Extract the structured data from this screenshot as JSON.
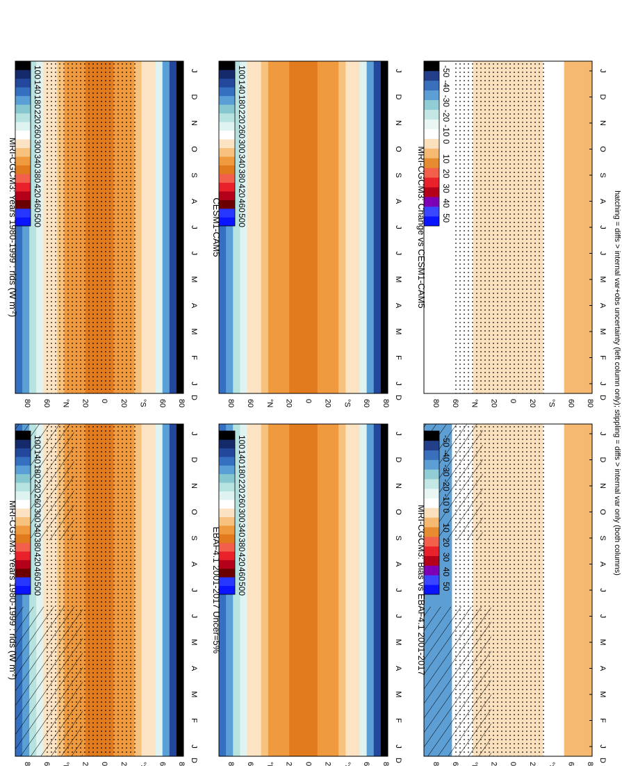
{
  "footer": "hatching = diffs > internal var+obs uncertainty (left column only); stippling = diffs > internal var only (both columns)",
  "chart_data": [
    {
      "type": "heatmap",
      "panel": "top-left",
      "title": "MRI-CGCM3: Years 1980-1999 : rlds (W m",
      "title_units_sup": "-2",
      "x_ticks": [
        "J",
        "F",
        "M",
        "A",
        "M",
        "J",
        "J",
        "A",
        "S",
        "O",
        "N",
        "D",
        "J"
      ],
      "y_ticks": [
        "80",
        "60",
        "°N",
        "20",
        "0",
        "20",
        "°S",
        "60",
        "80"
      ],
      "y_end_label": "D",
      "colorbar_labels": [
        "500",
        "460",
        "420",
        "380",
        "340",
        "300",
        "260",
        "220",
        "180",
        "140",
        "100"
      ],
      "hatching": true,
      "stippling": true
    },
    {
      "type": "heatmap",
      "panel": "middle-left",
      "title": "EBAF4.1 2001-2017 Uncer=5%",
      "x_ticks": [
        "J",
        "F",
        "M",
        "A",
        "M",
        "J",
        "J",
        "A",
        "S",
        "O",
        "N",
        "D",
        "J"
      ],
      "y_ticks": [
        "80",
        "60",
        "°N",
        "20",
        "0",
        "20",
        "°S",
        "60",
        "80"
      ],
      "y_end_label": "D",
      "colorbar_labels": [
        "500",
        "460",
        "420",
        "380",
        "340",
        "300",
        "260",
        "220",
        "180",
        "140",
        "100"
      ]
    },
    {
      "type": "heatmap",
      "panel": "bottom-left",
      "title": "MRI-CGCM3: Bias vs EBAF4.1 2001-2017",
      "x_ticks": [
        "J",
        "F",
        "M",
        "A",
        "M",
        "J",
        "J",
        "A",
        "S",
        "O",
        "N",
        "D",
        "J"
      ],
      "y_ticks": [
        "80",
        "60",
        "°N",
        "20",
        "0",
        "20",
        "°S",
        "60",
        "80"
      ],
      "y_end_label": "D",
      "colorbar_labels": [
        "50",
        "40",
        "30",
        "20",
        "10",
        "0",
        "-10",
        "-20",
        "-30",
        "-40",
        "-50"
      ],
      "hatching": true,
      "stippling": true
    },
    {
      "type": "heatmap",
      "panel": "top-right",
      "title": "MRI-CGCM3: Years 1980-1999 : rlds (W m",
      "title_units_sup": "-2",
      "x_ticks": [
        "J",
        "F",
        "M",
        "A",
        "M",
        "J",
        "J",
        "A",
        "S",
        "O",
        "N",
        "D",
        "J"
      ],
      "y_ticks": [
        "80",
        "60",
        "°N",
        "20",
        "0",
        "20",
        "°S",
        "60",
        "80"
      ],
      "y_end_label": "D",
      "colorbar_labels": [
        "500",
        "460",
        "420",
        "380",
        "340",
        "300",
        "260",
        "220",
        "180",
        "140",
        "100"
      ],
      "stippling": true
    },
    {
      "type": "heatmap",
      "panel": "middle-right",
      "title": "CESM1-CAM5",
      "x_ticks": [
        "J",
        "F",
        "M",
        "A",
        "M",
        "J",
        "J",
        "A",
        "S",
        "O",
        "N",
        "D",
        "J"
      ],
      "y_ticks": [
        "80",
        "60",
        "°N",
        "20",
        "0",
        "20",
        "°S",
        "60",
        "80"
      ],
      "y_end_label": "D",
      "colorbar_labels": [
        "500",
        "460",
        "420",
        "380",
        "340",
        "300",
        "260",
        "220",
        "180",
        "140",
        "100"
      ]
    },
    {
      "type": "heatmap",
      "panel": "bottom-right",
      "title": "MRI-CGCM3: Change vs CESM1-CAM5",
      "x_ticks": [
        "J",
        "F",
        "M",
        "A",
        "M",
        "J",
        "J",
        "A",
        "S",
        "O",
        "N",
        "D",
        "J"
      ],
      "y_ticks": [
        "80",
        "60",
        "°N",
        "20",
        "0",
        "20",
        "°S",
        "60",
        "80"
      ],
      "y_end_label": "D",
      "colorbar_labels": [
        "50",
        "40",
        "30",
        "20",
        "10",
        "0",
        "-10",
        "-20",
        "-30",
        "-40",
        "-50"
      ],
      "stippling": true
    }
  ],
  "colors": {
    "abs": [
      "#0a14ff",
      "#2837ff",
      "#6b0000",
      "#b5001a",
      "#e8212b",
      "#f2604b",
      "#e27a1e",
      "#f09a3f",
      "#f6c27e",
      "#fbe3c3",
      "#ffffff",
      "#dff3f1",
      "#b6e2e0",
      "#86c7d0",
      "#5a9fd6",
      "#356fbf",
      "#23479a",
      "#152a6b",
      "#000000"
    ],
    "diff": [
      "#0a14ff",
      "#3a46ff",
      "#7d00b4",
      "#b5001a",
      "#e8212b",
      "#f2604b",
      "#e78b31",
      "#f5b972",
      "#fbe0bd",
      "#ffffff",
      "#e9f6f4",
      "#c4e7e5",
      "#92cdd6",
      "#5d9fd4",
      "#3a70bb",
      "#233f8a",
      "#000000"
    ]
  }
}
